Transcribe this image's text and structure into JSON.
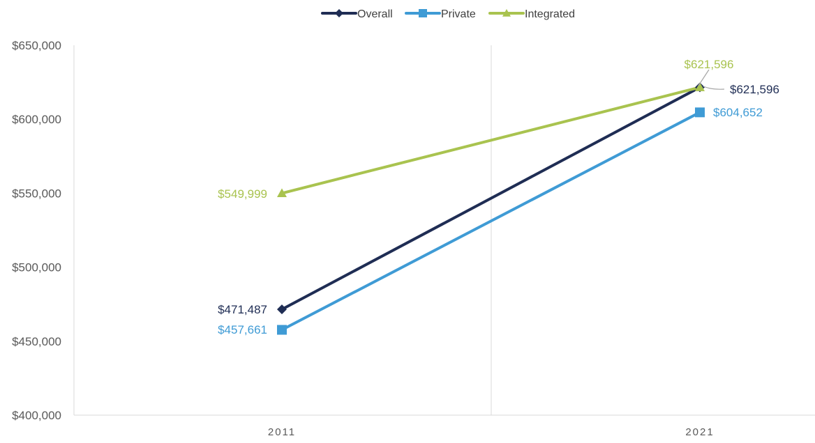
{
  "chart_data": {
    "type": "line",
    "categories": [
      "2011",
      "2021"
    ],
    "series": [
      {
        "name": "Overall",
        "values": [
          471487,
          621596
        ],
        "labels": [
          "$471,487",
          "$621,596"
        ],
        "color": "#1f2d54",
        "marker": "diamond"
      },
      {
        "name": "Private",
        "values": [
          457661,
          604652
        ],
        "labels": [
          "$457,661",
          "$604,652"
        ],
        "color": "#3f9bd5",
        "marker": "square"
      },
      {
        "name": "Integrated",
        "values": [
          549999,
          621596
        ],
        "labels": [
          "$549,999",
          "$621,596"
        ],
        "color": "#a9c34f",
        "marker": "triangle"
      }
    ],
    "ylim": [
      400000,
      650000
    ],
    "yticks": [
      "$400,000",
      "$450,000",
      "$500,000",
      "$550,000",
      "$600,000",
      "$650,000"
    ],
    "xlabel": "",
    "ylabel": "",
    "legend_position": "top",
    "grid": false
  }
}
